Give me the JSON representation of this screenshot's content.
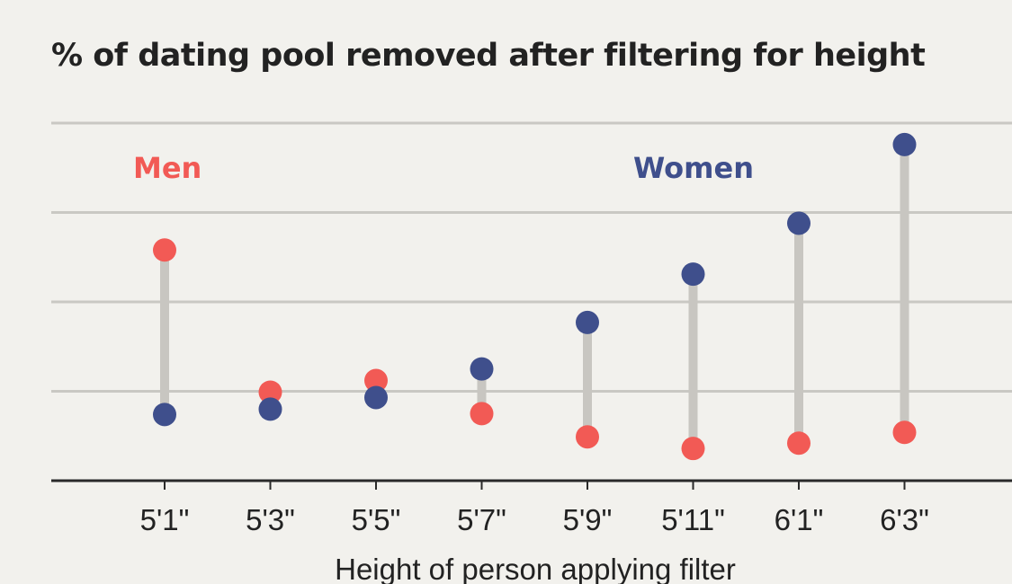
{
  "chart_data": {
    "type": "dot-range",
    "title": "% of dating pool removed after filtering for height",
    "xlabel": "Height of person applying filter",
    "ylabel": "",
    "categories": [
      "5'1\"",
      "5'3\"",
      "5'5\"",
      "5'7\"",
      "5'9\"",
      "5'11\"",
      "6'1\"",
      "6'3\""
    ],
    "ylim": [
      0,
      40
    ],
    "grid": true,
    "series": [
      {
        "name": "Men",
        "color": "#f25a55",
        "values": [
          25.8,
          9.9,
          11.2,
          7.5,
          4.9,
          3.6,
          4.2,
          5.4
        ]
      },
      {
        "name": "Women",
        "color": "#3f4f8c",
        "values": [
          7.4,
          8.0,
          9.3,
          12.5,
          17.7,
          23.1,
          28.8,
          37.6
        ]
      }
    ],
    "connector_color": "#c8c6c1"
  }
}
